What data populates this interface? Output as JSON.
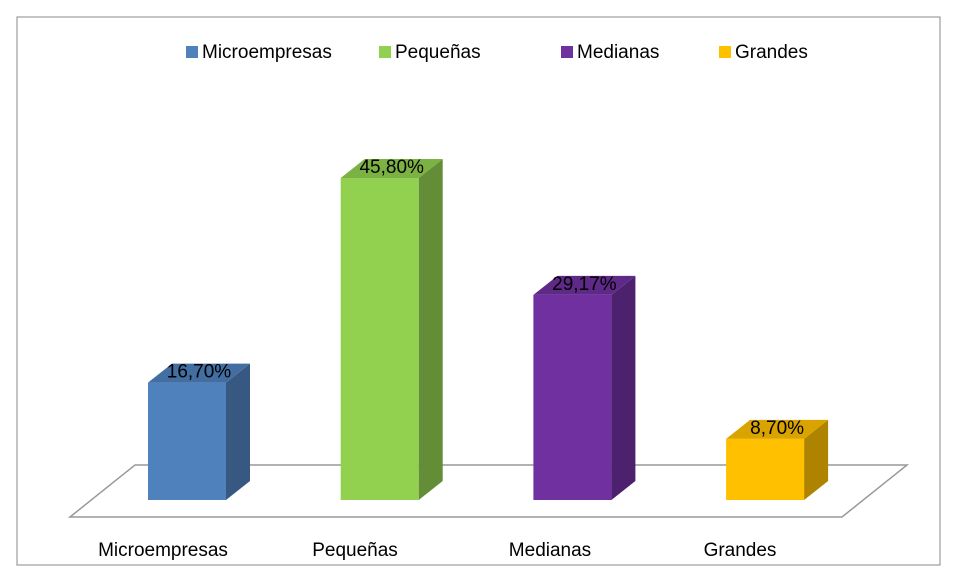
{
  "chart_data": {
    "type": "bar3d",
    "categories": [
      "Microempresas",
      "Pequeñas",
      "Medianas",
      "Grandes"
    ],
    "values": [
      16.7,
      45.8,
      29.17,
      8.7
    ],
    "value_labels": [
      "16,70%",
      "45,80%",
      "29,17%",
      "8,70%"
    ],
    "colors": [
      "#4f81bd",
      "#92d050",
      "#7030a0",
      "#ffc000"
    ],
    "ylim": [
      0,
      50
    ],
    "legend": "top"
  }
}
